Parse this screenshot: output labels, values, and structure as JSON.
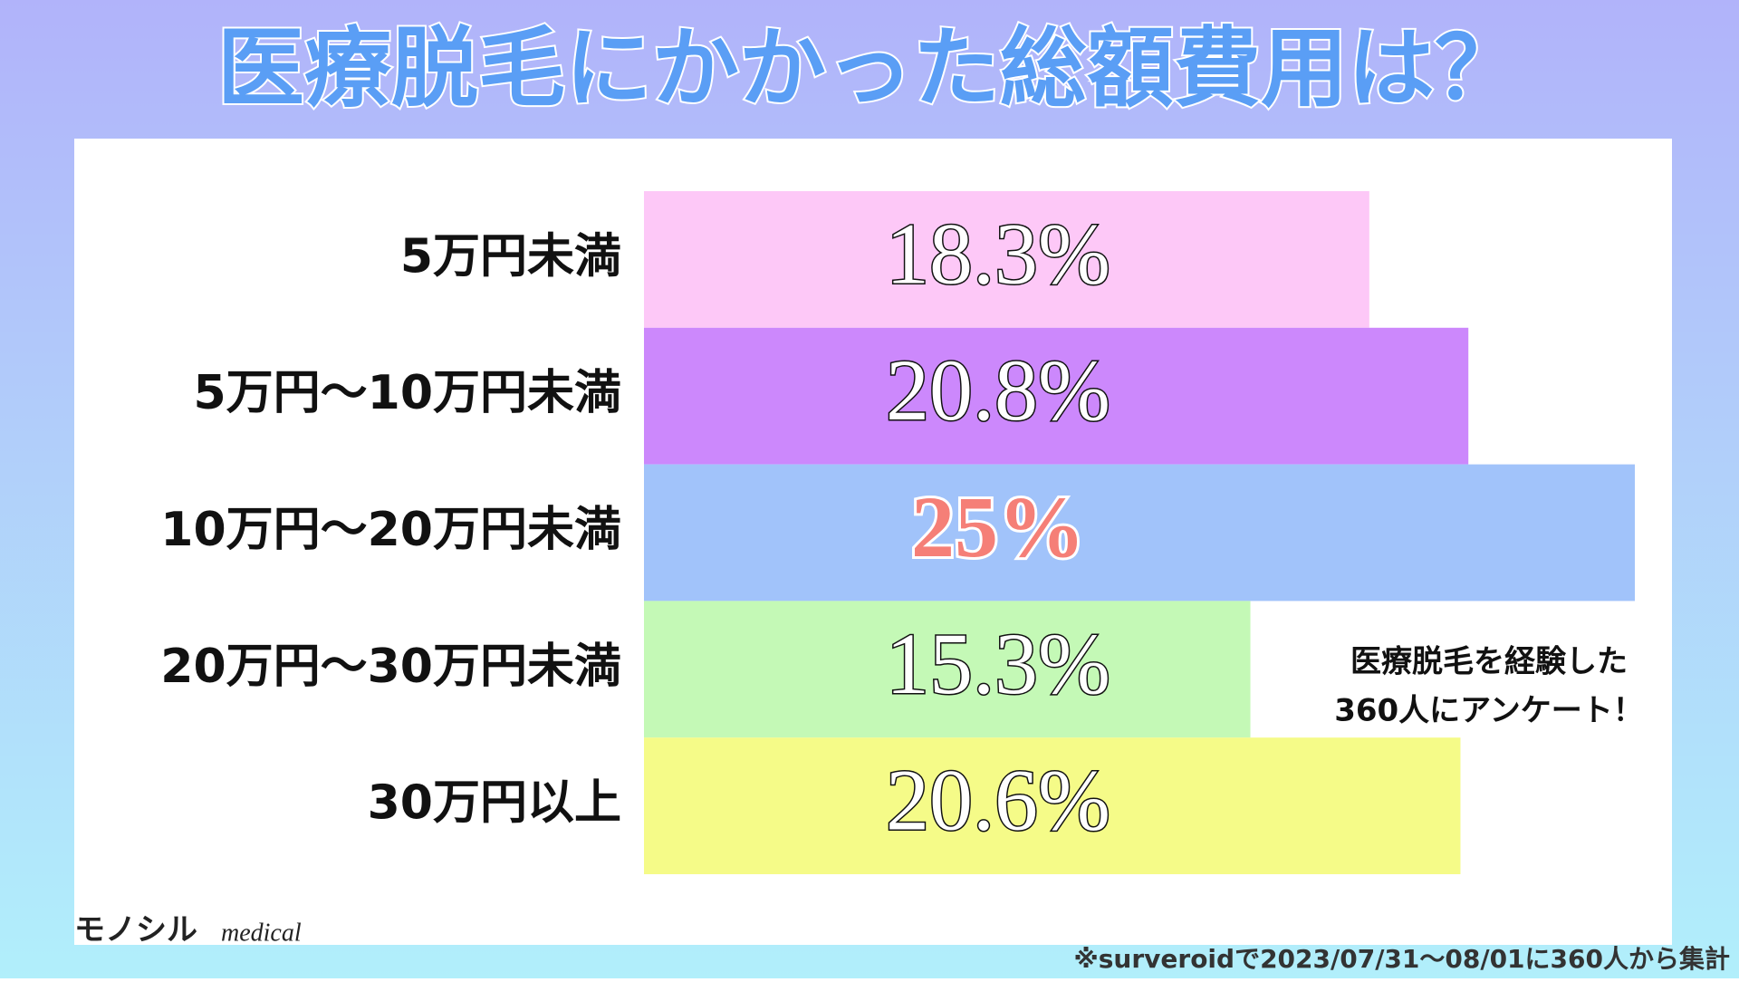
{
  "chart_data": {
    "type": "bar",
    "orientation": "horizontal",
    "title": "医療脱毛にかかった総額費用は？",
    "categories": [
      "5万円未満",
      "5万円～10万円未満",
      "10万円～20万円未満",
      "20万円～30万円未満",
      "30万円以上"
    ],
    "values": [
      18.3,
      20.8,
      25,
      15.3,
      20.6
    ],
    "value_labels": [
      "18.3%",
      "20.8%",
      "25%",
      "15.3%",
      "20.6%"
    ],
    "colors": [
      "#fdc8f7",
      "#cc88fc",
      "#a1c3fa",
      "#c4f9b6",
      "#f5fb88"
    ],
    "value_label_colors": [
      "#ffffff",
      "#ffffff",
      "#f57f77",
      "#ffffff",
      "#ffffff"
    ],
    "annotation": [
      "医療脱毛を経験した",
      "360人にアンケート！"
    ],
    "footnote": "※surveroidで2023/07/31～08/01に360人から集計"
  },
  "logo": {
    "main": "モノシル",
    "sub": "medical"
  }
}
